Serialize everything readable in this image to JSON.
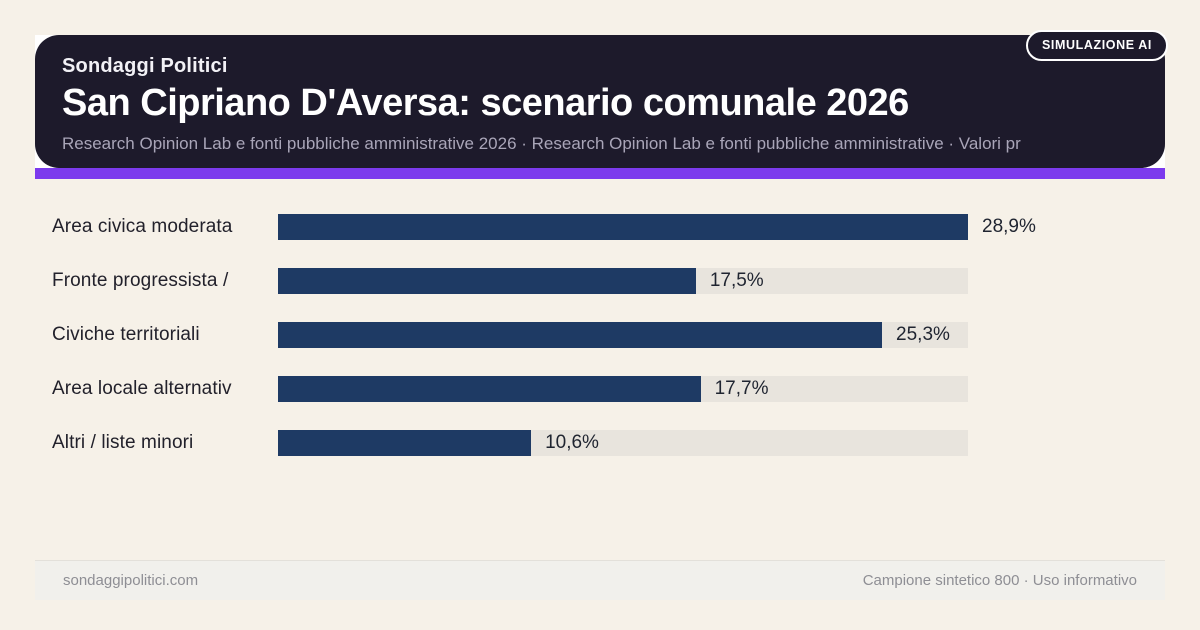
{
  "badge": "SIMULAZIONE AI",
  "header": {
    "kicker": "Sondaggi Politici",
    "title": "San Cipriano D'Aversa: scenario comunale 2026",
    "subtitle": "Research Opinion Lab e fonti pubbliche amministrative 2026 · Research Opinion Lab e fonti pubbliche amministrative · Valori pr"
  },
  "chart_data": {
    "type": "bar",
    "orientation": "horizontal",
    "title": "San Cipriano D'Aversa: scenario comunale 2026",
    "categories": [
      "Area civica moderata",
      "Fronte progressista /",
      "Civiche territoriali",
      "Area locale alternativ",
      "Altri / liste minori"
    ],
    "values": [
      28.9,
      17.5,
      25.3,
      17.7,
      10.6
    ],
    "value_labels": [
      "28,9%",
      "17,5%",
      "25,3%",
      "17,7%",
      "10,6%"
    ],
    "unit": "%",
    "max_scale": 28.9,
    "grid": false,
    "legend": false
  },
  "footer": {
    "left": "sondaggipolitici.com",
    "right": "Campione sintetico 800 · Uso informativo"
  },
  "colors": {
    "page_bg": "#f6f1e8",
    "header_bg": "#1d1a2b",
    "accent": "#7c3aed",
    "bar": "#1e3a64",
    "track": "#e8e4dd"
  }
}
